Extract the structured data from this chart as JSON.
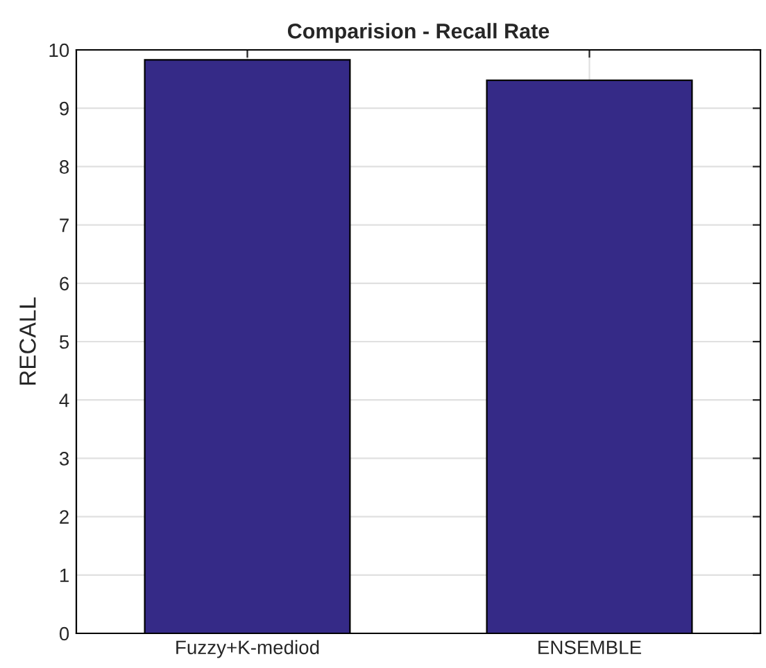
{
  "chart_data": {
    "type": "bar",
    "title": "Comparision - Recall Rate",
    "ylabel": "RECALL",
    "categories": [
      "Fuzzy+K-mediod",
      "ENSEMBLE"
    ],
    "values": [
      9.83,
      9.48
    ],
    "color": "#352a87",
    "ylim": [
      0,
      10
    ],
    "yticks": [
      0,
      1,
      2,
      3,
      4,
      5,
      6,
      7,
      8,
      9,
      10
    ],
    "grid": true
  }
}
